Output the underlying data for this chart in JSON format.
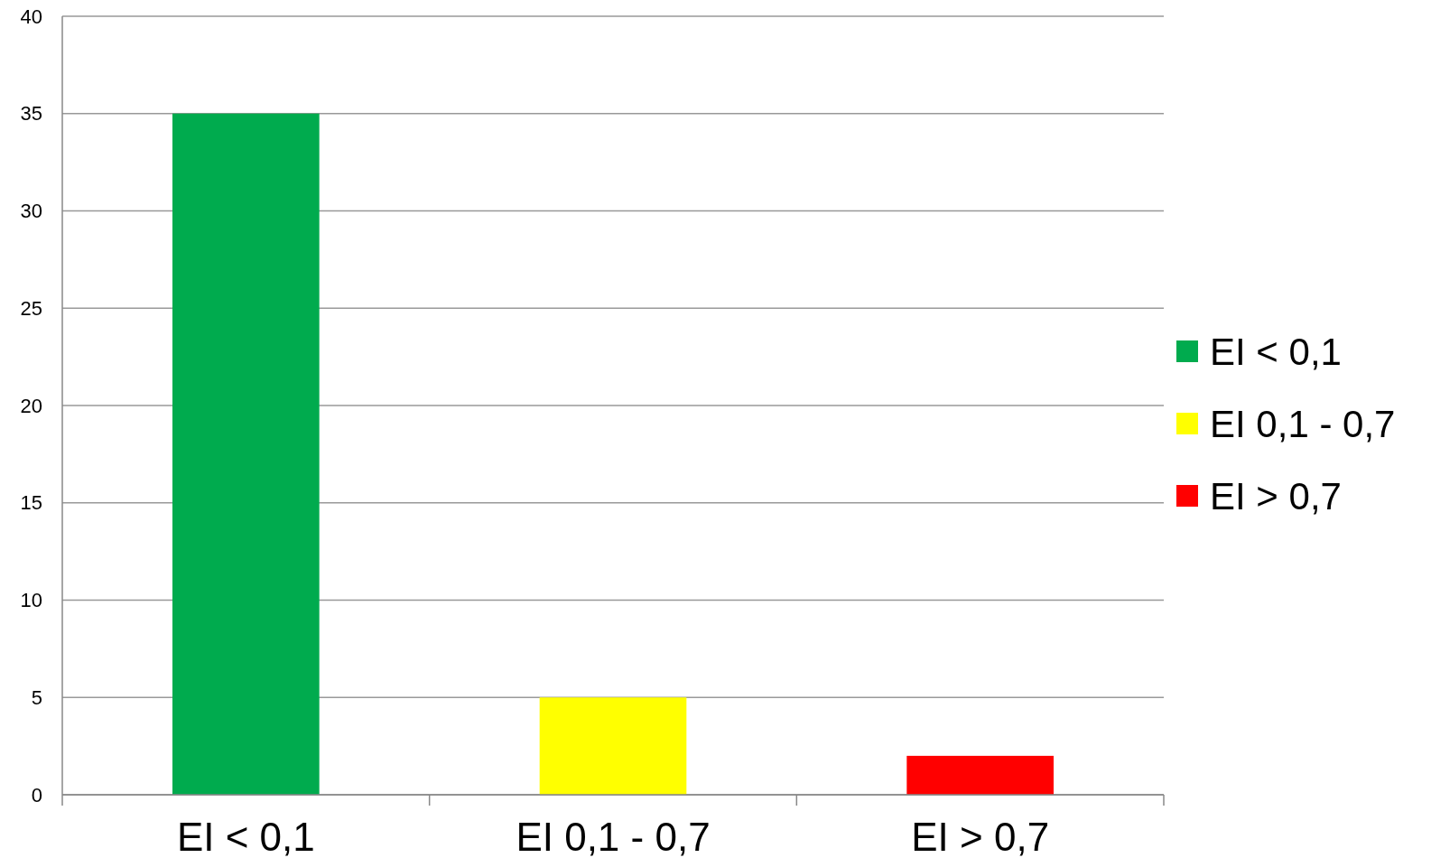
{
  "chart_data": {
    "type": "bar",
    "categories": [
      "EI < 0,1",
      "EI 0,1 - 0,7",
      "EI > 0,7"
    ],
    "series": [
      {
        "name": "EI < 0,1",
        "color": "#00ab4e",
        "values": [
          35,
          null,
          null
        ]
      },
      {
        "name": "EI 0,1 - 0,7",
        "color": "#ffff00",
        "values": [
          null,
          5,
          null
        ]
      },
      {
        "name": "EI > 0,7",
        "color": "#ff0000",
        "values": [
          null,
          null,
          2
        ]
      }
    ],
    "ylim": [
      0,
      40
    ],
    "yticks": [
      0,
      5,
      10,
      15,
      20,
      25,
      30,
      35,
      40
    ],
    "grid": "y",
    "legend": "right"
  }
}
